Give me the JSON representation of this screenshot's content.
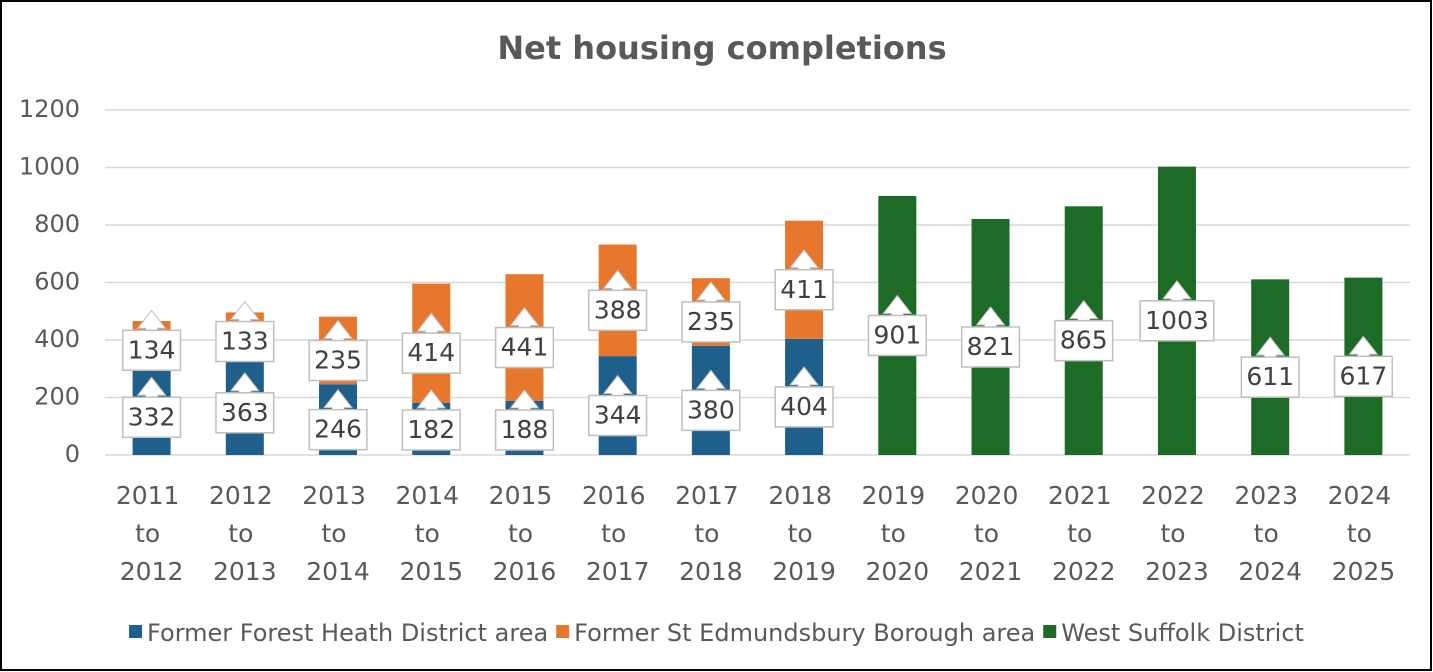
{
  "chart_data": {
    "type": "stacked-bar",
    "title": "Net housing completions",
    "categories": [
      "2011 to 2012",
      "2012 to 2013",
      "2013 to 2014",
      "2014 to 2015",
      "2015 to 2016",
      "2016 to 2017",
      "2017 to 2018",
      "2018 to 2019",
      "2019 to 2020",
      "2020 to 2021",
      "2021 to 2022",
      "2022 to 2023",
      "2023 to 2024",
      "2024 to 2025"
    ],
    "series": [
      {
        "name": "Former Forest Heath District area",
        "color": "#1f5f8b",
        "values": [
          332,
          363,
          246,
          182,
          188,
          344,
          380,
          404,
          null,
          null,
          null,
          null,
          null,
          null
        ]
      },
      {
        "name": "Former St Edmundsbury Borough area",
        "color": "#e8772e",
        "values": [
          134,
          133,
          235,
          414,
          441,
          388,
          235,
          411,
          null,
          null,
          null,
          null,
          null,
          null
        ]
      },
      {
        "name": "West Suffolk District",
        "color": "#1e6b27",
        "values": [
          null,
          null,
          null,
          null,
          null,
          null,
          null,
          null,
          901,
          821,
          865,
          1003,
          611,
          617
        ]
      }
    ],
    "ylim": [
      0,
      1200
    ],
    "yticks": [
      0,
      200,
      400,
      600,
      800,
      1000,
      1200
    ],
    "grid": true,
    "legend": "bottom"
  }
}
